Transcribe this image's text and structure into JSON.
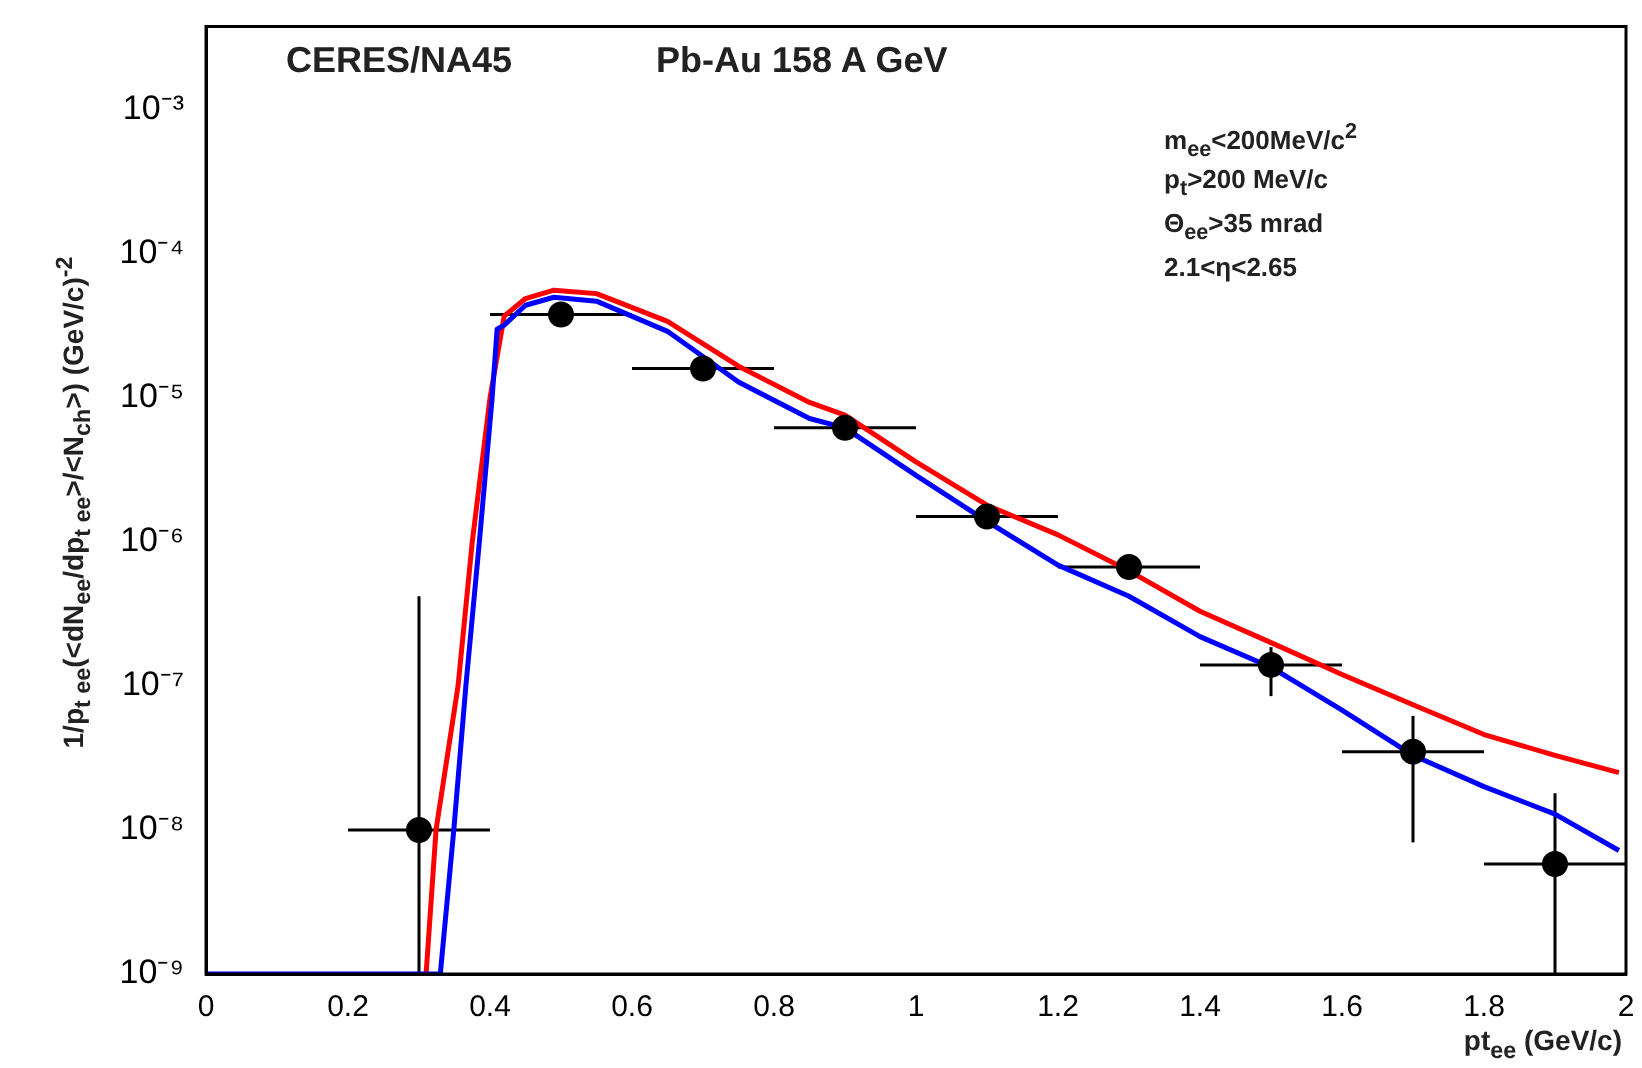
{
  "chart_data": {
    "type": "line",
    "title": "CERES/NA45",
    "subtitle": "Pb-Au 158 A GeV",
    "xlabel": "pt$_{ee}$ (GeV/c)",
    "ylabel": "1/p$_{t ee}$(<dN$_{ee}$/dp$_{t ee}$>/<N$_{ch}$>) (GeV/c)$^{-2}$",
    "annotations": [
      "m$_{ee}$<200MeV/c$^{2}$",
      "p$_{t}$>200 MeV/c",
      "Θ$_{ee}$>35 mrad",
      "2.1<η<2.65"
    ],
    "log": "y",
    "xlim": [
      0,
      2
    ],
    "xticks": [
      0,
      0.2,
      0.4,
      0.6,
      0.8,
      1,
      1.2,
      1.4,
      1.6,
      1.8,
      2
    ],
    "ylim": [
      1e-09,
      0.0038
    ],
    "yticks": [
      {
        "value": 1e-09,
        "label": "10⁻⁹"
      },
      {
        "value": 1e-08,
        "label": "10⁻⁸"
      },
      {
        "value": 1e-07,
        "label": "10⁻⁷"
      },
      {
        "value": 1e-06,
        "label": "10⁻⁶"
      },
      {
        "value": 1e-05,
        "label": "10⁻⁵"
      },
      {
        "value": 0.0001,
        "label": "10⁻⁴"
      },
      {
        "value": 0.001,
        "label": "10⁻³"
      }
    ],
    "series": [
      {
        "color": "#ff0000",
        "x": [
          0.31,
          0.324,
          0.355,
          0.375,
          0.4,
          0.42,
          0.45,
          0.49,
          0.55,
          0.65,
          0.75,
          0.85,
          0.9,
          1.0,
          1.1,
          1.2,
          1.3,
          1.4,
          1.5,
          1.6,
          1.7,
          1.8,
          1.9,
          1.99
        ],
        "values": [
          1e-09,
          1e-08,
          1e-07,
          1e-06,
          1e-05,
          3.7e-05,
          4.9e-05,
          5.6e-05,
          5.3e-05,
          3.4e-05,
          1.66e-05,
          9.3e-06,
          7.6e-06,
          3.6e-06,
          1.8e-06,
          1.12e-06,
          6.3e-07,
          3.3e-07,
          2e-07,
          1.2e-07,
          7.4e-08,
          4.6e-08,
          3.3e-08,
          2.5e-08
        ]
      },
      {
        "color": "#0000ff",
        "x": [
          0,
          0.33,
          0.349,
          0.366,
          0.385,
          0.403,
          0.41,
          0.42,
          0.45,
          0.49,
          0.55,
          0.65,
          0.75,
          0.85,
          0.9,
          1.0,
          1.1,
          1.2,
          1.3,
          1.4,
          1.5,
          1.6,
          1.7,
          1.8,
          1.9,
          1.99
        ],
        "values": [
          1e-09,
          1e-09,
          1e-08,
          1e-07,
          1e-06,
          1e-05,
          3e-05,
          3.2e-05,
          4.4e-05,
          5e-05,
          4.7e-05,
          2.9e-05,
          1.29e-05,
          7.2e-06,
          6.2e-06,
          2.9e-06,
          1.39e-06,
          6.9e-07,
          4.2e-07,
          2.2e-07,
          1.35e-07,
          6.8e-08,
          3.3e-08,
          2e-08,
          1.29e-08,
          7.2e-09
        ]
      },
      {
        "type": "scatter",
        "color": "#000000",
        "marker": "circle",
        "x": [
          0.3,
          0.5,
          0.7,
          0.9,
          1.1,
          1.3,
          1.5,
          1.7,
          1.9
        ],
        "values": [
          1e-08,
          3.8e-05,
          1.6e-05,
          6.2e-06,
          1.5e-06,
          6.7e-07,
          1.4e-07,
          3.5e-08,
          5.8e-09
        ],
        "errors": [
          [
            1e-09,
            4.2e-07
          ],
          null,
          null,
          null,
          null,
          null,
          [
            8.5e-08,
            1.86e-07
          ],
          [
            8.2e-09,
            6.2e-08
          ],
          [
            1e-09,
            1.8e-08
          ]
        ],
        "xerrors": [
          0.1,
          0.1,
          0.1,
          0.1,
          0.1,
          0.1,
          0.1,
          0.1,
          0.1
        ]
      }
    ]
  }
}
